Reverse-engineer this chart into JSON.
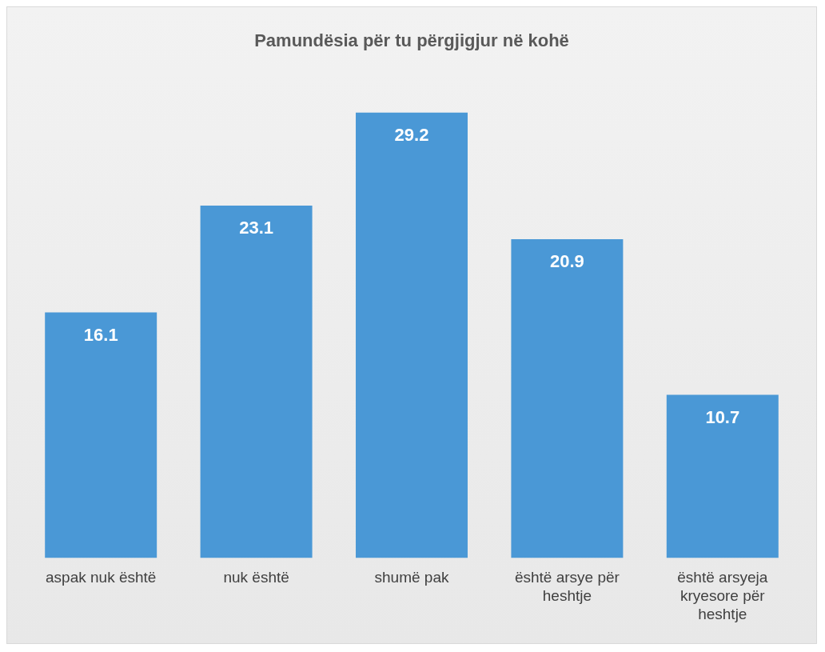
{
  "chart_data": {
    "type": "bar",
    "title": "Pamundësia për tu përgjigjur në kohë",
    "categories": [
      "aspak nuk është",
      "nuk është",
      "shumë pak",
      "është arsye për heshtje",
      "është arsyeja kryesore për heshtje"
    ],
    "values": [
      16.1,
      23.1,
      29.2,
      20.9,
      10.7
    ],
    "color": "#4a98d6",
    "data_labels": true,
    "grid": false,
    "legend": false
  }
}
